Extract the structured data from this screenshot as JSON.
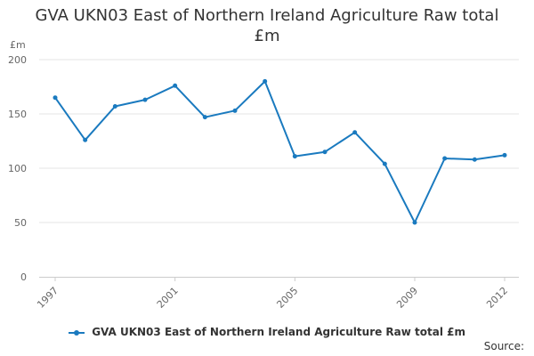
{
  "chart_data": {
    "type": "line",
    "title_line1": "GVA UKN03 East of Northern Ireland Agriculture Raw total",
    "title_line2": "£m",
    "ylabel": "£m",
    "xlabel": "",
    "ylim": [
      0,
      200
    ],
    "y_ticks": [
      0,
      50,
      100,
      150,
      200
    ],
    "x_ticks": [
      "1997",
      "2001",
      "2005",
      "2009",
      "2012"
    ],
    "series": [
      {
        "name": "GVA UKN03 East of Northern Ireland Agriculture Raw total £m",
        "color": "#1a7abf",
        "x": [
          1997,
          1998,
          1999,
          2000,
          2001,
          2002,
          2003,
          2004,
          2005,
          2006,
          2007,
          2008,
          2009,
          2010,
          2011,
          2012
        ],
        "values": [
          165,
          126,
          157,
          163,
          176,
          147,
          153,
          180,
          111,
          115,
          133,
          104,
          50,
          109,
          108,
          112
        ]
      }
    ],
    "grid": true,
    "legend_position": "bottom-center"
  },
  "footer": {
    "source_label": "Source:"
  }
}
